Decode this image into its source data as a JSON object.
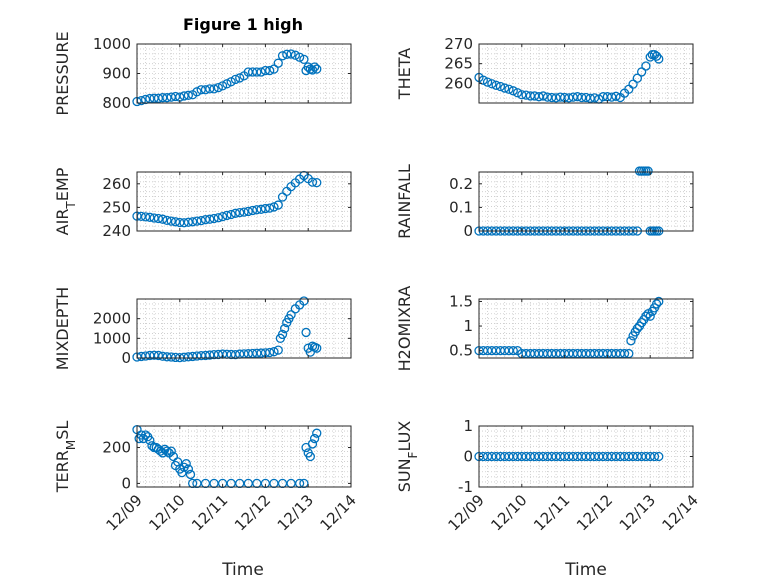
{
  "figure": {
    "title": "Figure 1 high",
    "xlabel": "Time",
    "marker_color": "#0072bd",
    "background": "#ffffff",
    "grid": "minor-dotted",
    "x_tick_labels": [
      "12/09",
      "12/10",
      "12/11",
      "12/12",
      "12/13",
      "12/14"
    ],
    "x_range": [
      0,
      5
    ]
  },
  "chart_data": [
    {
      "type": "scatter",
      "ylabel": "PRESSURE",
      "ylim": [
        800,
        1000
      ],
      "yticks": [
        "800",
        "900",
        "1000"
      ],
      "series": [
        {
          "x": [
            0,
            0.1,
            0.2,
            0.3,
            0.4,
            0.5,
            0.6,
            0.7,
            0.8,
            0.9,
            1.0,
            1.1,
            1.2,
            1.3,
            1.4,
            1.5,
            1.6,
            1.7,
            1.8,
            1.9,
            2.0,
            2.1,
            2.2,
            2.3,
            2.4,
            2.5,
            2.6,
            2.7,
            2.8,
            2.9,
            3.0,
            3.1,
            3.2,
            3.3,
            3.4,
            3.5,
            3.6,
            3.7,
            3.8,
            3.9,
            3.95,
            4.0,
            4.05,
            4.1,
            4.15,
            4.2
          ],
          "y": [
            805,
            808,
            812,
            815,
            816,
            816,
            818,
            818,
            820,
            822,
            820,
            824,
            826,
            828,
            838,
            845,
            845,
            848,
            848,
            852,
            858,
            865,
            872,
            880,
            885,
            892,
            905,
            905,
            905,
            905,
            910,
            910,
            915,
            935,
            960,
            965,
            966,
            962,
            955,
            948,
            910,
            922,
            915,
            912,
            922,
            915
          ]
        }
      ]
    },
    {
      "type": "scatter",
      "ylabel": "THETA",
      "ylim": [
        255,
        270
      ],
      "yticks": [
        "260",
        "265",
        "270"
      ],
      "series": [
        {
          "x": [
            0,
            0.1,
            0.2,
            0.3,
            0.4,
            0.5,
            0.6,
            0.7,
            0.8,
            0.9,
            1.0,
            1.1,
            1.2,
            1.3,
            1.4,
            1.5,
            1.6,
            1.7,
            1.8,
            1.9,
            2.0,
            2.1,
            2.2,
            2.3,
            2.4,
            2.5,
            2.6,
            2.7,
            2.8,
            2.9,
            3.0,
            3.1,
            3.2,
            3.3,
            3.4,
            3.5,
            3.6,
            3.7,
            3.8,
            3.9,
            4.0,
            4.05,
            4.1,
            4.15,
            4.2
          ],
          "y": [
            261.5,
            260.8,
            260.3,
            259.9,
            259.5,
            259.2,
            258.8,
            258.5,
            258.1,
            257.6,
            257.1,
            257.0,
            256.8,
            256.8,
            256.6,
            256.8,
            256.5,
            256.4,
            256.3,
            256.5,
            256.4,
            256.3,
            256.5,
            256.6,
            256.4,
            256.4,
            256.2,
            256.3,
            256.0,
            256.6,
            256.6,
            256.5,
            256.7,
            256.4,
            257.5,
            258.5,
            259.8,
            261.3,
            262.9,
            264.4,
            266.7,
            267.3,
            267.3,
            266.9,
            266.2
          ]
        }
      ]
    },
    {
      "type": "scatter",
      "ylabel": "AIR_TEMP",
      "ylim": [
        240,
        265
      ],
      "yticks": [
        "240",
        "250",
        "260"
      ],
      "series": [
        {
          "x": [
            0,
            0.1,
            0.2,
            0.3,
            0.4,
            0.5,
            0.6,
            0.7,
            0.8,
            0.9,
            1.0,
            1.1,
            1.2,
            1.3,
            1.4,
            1.5,
            1.6,
            1.7,
            1.8,
            1.9,
            2.0,
            2.1,
            2.2,
            2.3,
            2.4,
            2.5,
            2.6,
            2.7,
            2.8,
            2.9,
            3.0,
            3.1,
            3.2,
            3.3,
            3.4,
            3.5,
            3.6,
            3.7,
            3.8,
            3.9,
            4.0,
            4.1,
            4.2
          ],
          "y": [
            246.3,
            246.2,
            246.0,
            245.8,
            245.5,
            245.3,
            245.0,
            244.5,
            244.2,
            243.9,
            243.6,
            243.5,
            243.7,
            243.9,
            244.2,
            244.4,
            244.8,
            245.0,
            245.3,
            245.6,
            246.1,
            246.6,
            247.0,
            247.5,
            247.8,
            248.0,
            248.3,
            248.7,
            249.0,
            249.2,
            249.5,
            249.7,
            250.2,
            251.0,
            254.4,
            256.8,
            258.8,
            260.4,
            262.0,
            263.5,
            262.2,
            260.7,
            260.5
          ]
        }
      ]
    },
    {
      "type": "scatter",
      "ylabel": "RAINFALL",
      "ylim": [
        0,
        0.25
      ],
      "yticks": [
        "0",
        "0.1",
        "0.2"
      ],
      "series": [
        {
          "x": [
            0,
            0.1,
            0.2,
            0.3,
            0.4,
            0.5,
            0.6,
            0.7,
            0.8,
            0.9,
            1.0,
            1.1,
            1.2,
            1.3,
            1.4,
            1.5,
            1.6,
            1.7,
            1.8,
            1.9,
            2.0,
            2.1,
            2.2,
            2.3,
            2.4,
            2.5,
            2.6,
            2.7,
            2.8,
            2.9,
            3.0,
            3.1,
            3.2,
            3.3,
            3.4,
            3.5,
            3.6,
            3.7,
            3.75,
            3.8,
            3.85,
            3.9,
            3.95,
            4.0,
            4.05,
            4.1,
            4.15,
            4.2
          ],
          "y": [
            0,
            0,
            0,
            0,
            0,
            0,
            0,
            0,
            0,
            0,
            0,
            0,
            0,
            0,
            0,
            0,
            0,
            0,
            0,
            0,
            0,
            0,
            0,
            0,
            0,
            0,
            0,
            0,
            0,
            0,
            0,
            0,
            0,
            0,
            0,
            0,
            0,
            0,
            0.254,
            0.254,
            0.254,
            0.254,
            0.254,
            0,
            0,
            0,
            0,
            0
          ]
        }
      ]
    },
    {
      "type": "scatter",
      "ylabel": "MIXDEPTH",
      "ylim": [
        0,
        3000
      ],
      "yticks": [
        "0",
        "1000",
        "2000"
      ],
      "series": [
        {
          "x": [
            0,
            0.1,
            0.2,
            0.3,
            0.4,
            0.5,
            0.6,
            0.7,
            0.8,
            0.9,
            1.0,
            1.1,
            1.2,
            1.3,
            1.4,
            1.5,
            1.6,
            1.7,
            1.8,
            1.9,
            2.0,
            2.1,
            2.2,
            2.3,
            2.4,
            2.5,
            2.6,
            2.7,
            2.8,
            2.9,
            3.0,
            3.1,
            3.2,
            3.3,
            3.35,
            3.4,
            3.45,
            3.5,
            3.55,
            3.6,
            3.7,
            3.8,
            3.9,
            3.95,
            4.0,
            4.05,
            4.1,
            4.15,
            4.2
          ],
          "y": [
            50,
            80,
            100,
            130,
            140,
            130,
            90,
            60,
            50,
            30,
            20,
            40,
            60,
            80,
            100,
            120,
            130,
            150,
            170,
            180,
            200,
            190,
            180,
            170,
            200,
            210,
            220,
            230,
            240,
            250,
            260,
            280,
            320,
            400,
            1000,
            1200,
            1500,
            1800,
            2000,
            2200,
            2500,
            2700,
            2900,
            1300,
            500,
            300,
            600,
            550,
            500
          ]
        }
      ]
    },
    {
      "type": "scatter",
      "ylabel": "H2OMIXRA",
      "ylim": [
        0.35,
        1.55
      ],
      "yticks": [
        "0.5",
        "1",
        "1.5"
      ],
      "series": [
        {
          "x": [
            0,
            0.1,
            0.2,
            0.3,
            0.4,
            0.5,
            0.6,
            0.7,
            0.8,
            0.9,
            1.0,
            1.1,
            1.2,
            1.3,
            1.4,
            1.5,
            1.6,
            1.7,
            1.8,
            1.9,
            2.0,
            2.1,
            2.2,
            2.3,
            2.4,
            2.5,
            2.6,
            2.7,
            2.8,
            2.9,
            3.0,
            3.1,
            3.2,
            3.3,
            3.4,
            3.5,
            3.55,
            3.6,
            3.65,
            3.7,
            3.75,
            3.8,
            3.85,
            3.9,
            3.95,
            4.0,
            4.05,
            4.1,
            4.15,
            4.2
          ],
          "y": [
            0.5,
            0.5,
            0.5,
            0.5,
            0.5,
            0.5,
            0.5,
            0.5,
            0.5,
            0.5,
            0.44,
            0.44,
            0.44,
            0.44,
            0.44,
            0.44,
            0.44,
            0.44,
            0.44,
            0.44,
            0.44,
            0.44,
            0.44,
            0.44,
            0.44,
            0.44,
            0.44,
            0.44,
            0.44,
            0.44,
            0.44,
            0.44,
            0.44,
            0.44,
            0.44,
            0.44,
            0.7,
            0.8,
            0.88,
            0.95,
            1.0,
            1.07,
            1.13,
            1.2,
            1.25,
            1.2,
            1.3,
            1.37,
            1.45,
            1.5
          ]
        }
      ]
    },
    {
      "type": "scatter",
      "ylabel": "TERR_MSL",
      "ylim": [
        -20,
        320
      ],
      "yticks": [
        "0",
        "200"
      ],
      "series": [
        {
          "x": [
            0,
            0.05,
            0.1,
            0.15,
            0.2,
            0.25,
            0.3,
            0.35,
            0.4,
            0.45,
            0.5,
            0.55,
            0.6,
            0.65,
            0.7,
            0.75,
            0.8,
            0.85,
            0.9,
            0.95,
            1.0,
            1.05,
            1.1,
            1.15,
            1.2,
            1.25,
            1.3,
            1.4,
            1.6,
            1.8,
            2.0,
            2.2,
            2.4,
            2.6,
            2.8,
            3.0,
            3.2,
            3.4,
            3.6,
            3.8,
            3.9,
            3.95,
            4.0,
            4.05,
            4.1,
            4.15,
            4.2
          ],
          "y": [
            300,
            250,
            270,
            250,
            270,
            260,
            240,
            210,
            200,
            200,
            190,
            180,
            170,
            190,
            180,
            170,
            180,
            150,
            100,
            120,
            80,
            60,
            90,
            110,
            80,
            50,
            0,
            0,
            0,
            0,
            0,
            0,
            0,
            0,
            0,
            0,
            0,
            0,
            0,
            0,
            0,
            200,
            170,
            150,
            220,
            250,
            280
          ]
        }
      ]
    },
    {
      "type": "scatter",
      "ylabel": "SUN_FLUX",
      "ylim": [
        -1,
        1
      ],
      "yticks": [
        "-1",
        "0",
        "1"
      ],
      "series": [
        {
          "x": [
            0,
            0.1,
            0.2,
            0.3,
            0.4,
            0.5,
            0.6,
            0.7,
            0.8,
            0.9,
            1.0,
            1.1,
            1.2,
            1.3,
            1.4,
            1.5,
            1.6,
            1.7,
            1.8,
            1.9,
            2.0,
            2.1,
            2.2,
            2.3,
            2.4,
            2.5,
            2.6,
            2.7,
            2.8,
            2.9,
            3.0,
            3.1,
            3.2,
            3.3,
            3.4,
            3.5,
            3.6,
            3.7,
            3.8,
            3.9,
            4.0,
            4.1,
            4.2
          ],
          "y": [
            0,
            0,
            0,
            0,
            0,
            0,
            0,
            0,
            0,
            0,
            0,
            0,
            0,
            0,
            0,
            0,
            0,
            0,
            0,
            0,
            0,
            0,
            0,
            0,
            0,
            0,
            0,
            0,
            0,
            0,
            0,
            0,
            0,
            0,
            0,
            0,
            0,
            0,
            0,
            0,
            0,
            0,
            0
          ]
        }
      ]
    }
  ]
}
